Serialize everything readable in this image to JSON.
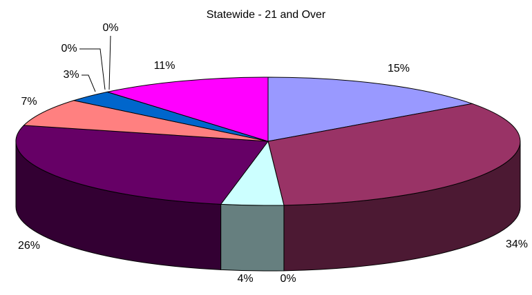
{
  "chart_data": {
    "type": "pie3d",
    "title": "Statewide - 21 and Over",
    "values": [
      15,
      34,
      0,
      4,
      26,
      7,
      3,
      0,
      0,
      11
    ],
    "value_labels": [
      "15%",
      "34%",
      "0%",
      "4%",
      "26%",
      "7%",
      "3%",
      "0%",
      "0%",
      "11%"
    ],
    "colors": [
      "#9999ff",
      "#993366",
      "#ffffcc",
      "#ccffff",
      "#660066",
      "#ff8080",
      "#0066cc",
      "#ccccff",
      "#000080",
      "#ff00ff"
    ]
  }
}
